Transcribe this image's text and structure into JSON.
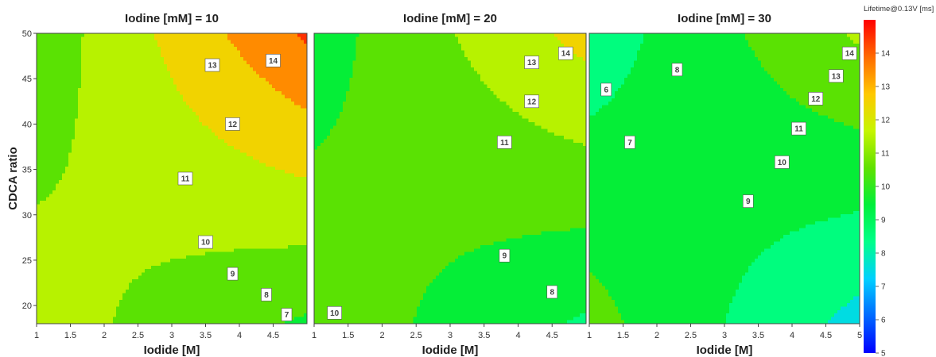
{
  "chart_data": [
    {
      "type": "heatmap",
      "title": "Iodine [mM] = 10",
      "xlabel": "Iodide [M]",
      "ylabel": "CDCA ratio",
      "xlim": [
        1,
        5
      ],
      "ylim": [
        18,
        50
      ],
      "x_ticks": [
        "1",
        "1.5",
        "2",
        "2.5",
        "3",
        "3.5",
        "4",
        "4.5"
      ],
      "y_ticks": [
        "20",
        "25",
        "30",
        "35",
        "40",
        "45",
        "50"
      ],
      "model": {
        "a": 11.45,
        "b": 0.55,
        "c": 0.8,
        "d": 1.35
      },
      "contour_labels": [
        {
          "text": "14",
          "x": 4.5,
          "y": 47
        },
        {
          "text": "13",
          "x": 3.6,
          "y": 46.5
        },
        {
          "text": "12",
          "x": 3.9,
          "y": 40
        },
        {
          "text": "11",
          "x": 3.2,
          "y": 34
        },
        {
          "text": "10",
          "x": 3.5,
          "y": 27
        },
        {
          "text": "9",
          "x": 3.9,
          "y": 23.5
        },
        {
          "text": "8",
          "x": 4.4,
          "y": 21.2
        },
        {
          "text": "7",
          "x": 4.7,
          "y": 19
        }
      ]
    },
    {
      "type": "heatmap",
      "title": "Iodine [mM] = 20",
      "xlabel": "Iodide [M]",
      "ylabel": "",
      "xlim": [
        1,
        5
      ],
      "ylim": [
        18,
        50
      ],
      "x_ticks": [
        "1",
        "1.5",
        "2",
        "2.5",
        "3",
        "3.5",
        "4",
        "4.5"
      ],
      "y_ticks": [],
      "model": {
        "a": 10.35,
        "b": 0.25,
        "c": 0.6,
        "d": 1.15
      },
      "contour_labels": [
        {
          "text": "14",
          "x": 4.7,
          "y": 47.8
        },
        {
          "text": "13",
          "x": 4.2,
          "y": 46.8
        },
        {
          "text": "12",
          "x": 4.2,
          "y": 42.5
        },
        {
          "text": "11",
          "x": 3.8,
          "y": 38
        },
        {
          "text": "9",
          "x": 3.8,
          "y": 25.5
        },
        {
          "text": "8",
          "x": 4.5,
          "y": 21.5
        },
        {
          "text": "10",
          "x": 1.3,
          "y": 19.2
        }
      ]
    },
    {
      "type": "heatmap",
      "title": "Iodine [mM] = 30",
      "xlabel": "Iodide [M]",
      "ylabel": "",
      "xlim": [
        1,
        5
      ],
      "ylim": [
        18,
        50
      ],
      "x_ticks": [
        "1",
        "1.5",
        "2",
        "2.5",
        "3",
        "3.5",
        "4",
        "4.5",
        "5"
      ],
      "y_ticks": [],
      "model": {
        "a": 9.4,
        "b": 0.0,
        "c": 0.4,
        "d": 1.35
      },
      "contour_labels": [
        {
          "text": "14",
          "x": 4.85,
          "y": 47.8
        },
        {
          "text": "13",
          "x": 4.65,
          "y": 45.3
        },
        {
          "text": "12",
          "x": 4.35,
          "y": 42.8
        },
        {
          "text": "11",
          "x": 4.1,
          "y": 39.5
        },
        {
          "text": "10",
          "x": 3.85,
          "y": 35.8
        },
        {
          "text": "9",
          "x": 3.35,
          "y": 31.5
        },
        {
          "text": "8",
          "x": 2.3,
          "y": 46
        },
        {
          "text": "7",
          "x": 1.6,
          "y": 38
        },
        {
          "text": "6",
          "x": 1.25,
          "y": 43.8
        }
      ]
    }
  ],
  "colorbar": {
    "title": "Lifetime@0.13V [ms]",
    "min": 5,
    "max": 15,
    "ticks": [
      "5",
      "6",
      "7",
      "8",
      "9",
      "10",
      "11",
      "12",
      "13",
      "14"
    ],
    "stops": [
      "#0000ff",
      "#0068ff",
      "#00d0ff",
      "#00ff8a",
      "#00ef3a",
      "#5fe100",
      "#c6f500",
      "#ffc800",
      "#ff6a00",
      "#ff0000"
    ]
  }
}
